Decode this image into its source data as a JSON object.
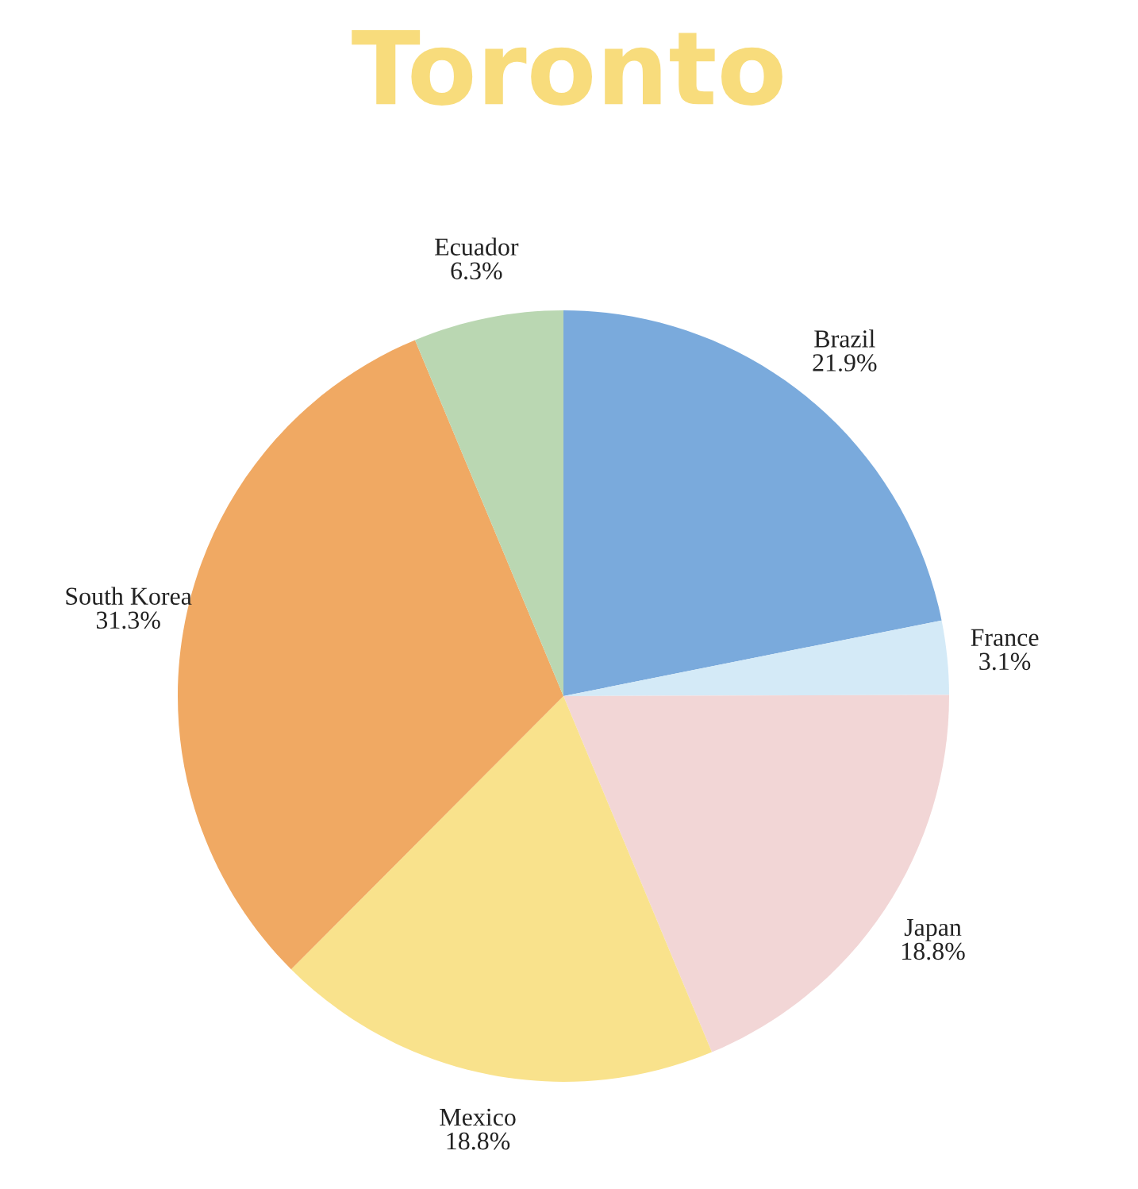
{
  "chart_data": {
    "type": "pie",
    "title": "Toronto",
    "categories": [
      "Brazil",
      "France",
      "Japan",
      "Mexico",
      "South Korea",
      "Ecuador"
    ],
    "values": [
      21.9,
      3.1,
      18.8,
      18.8,
      31.3,
      6.3
    ],
    "value_labels": [
      "21.9%",
      "3.1%",
      "18.8%",
      "18.8%",
      "31.3%",
      "6.3%"
    ],
    "colors": [
      "#7aaadc",
      "#d4eaf7",
      "#f2d6d6",
      "#f9e28c",
      "#f0a963",
      "#bad7b2"
    ]
  }
}
